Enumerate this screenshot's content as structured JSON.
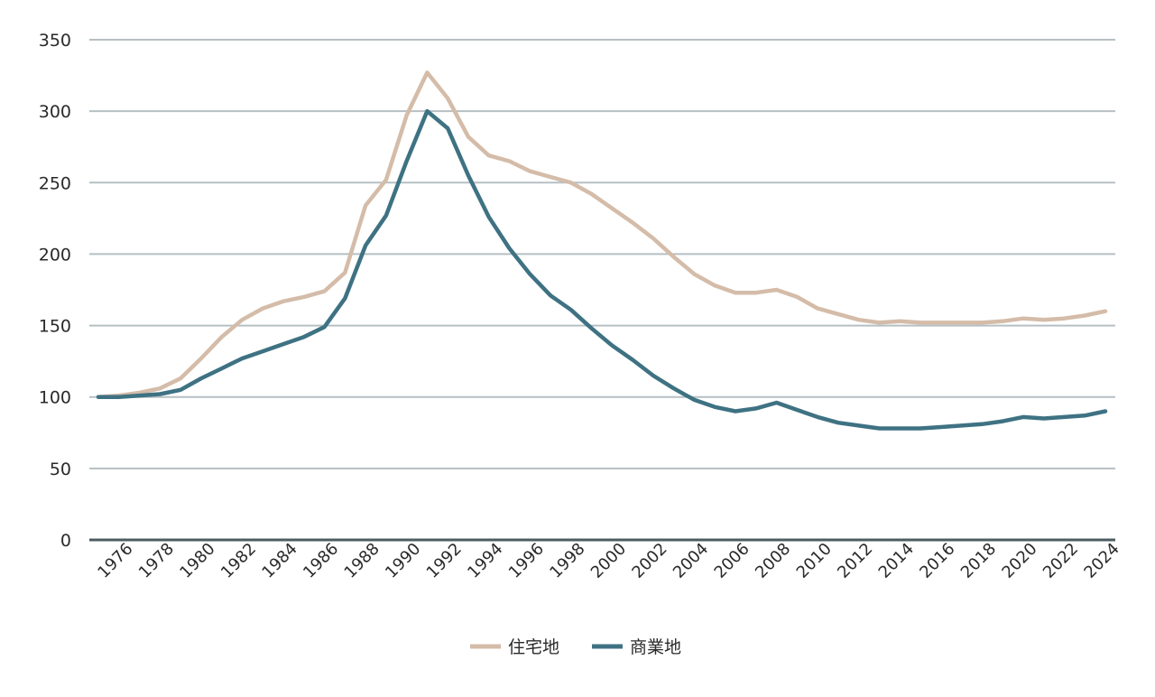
{
  "chart_data": {
    "type": "line",
    "title": "",
    "xlabel": "",
    "ylabel": "",
    "ylim": [
      0,
      350
    ],
    "yticks": [
      0,
      50,
      100,
      150,
      200,
      250,
      300,
      350
    ],
    "grid": true,
    "legend_position": "bottom-center",
    "x": [
      1975,
      1976,
      1977,
      1978,
      1979,
      1980,
      1981,
      1982,
      1983,
      1984,
      1985,
      1986,
      1987,
      1988,
      1989,
      1990,
      1991,
      1992,
      1993,
      1994,
      1995,
      1996,
      1997,
      1998,
      1999,
      2000,
      2001,
      2002,
      2003,
      2004,
      2005,
      2006,
      2007,
      2008,
      2009,
      2010,
      2011,
      2012,
      2013,
      2014,
      2015,
      2016,
      2017,
      2018,
      2019,
      2020,
      2021,
      2022,
      2023,
      2024
    ],
    "xtick_labels": [
      "1976",
      "1978",
      "1980",
      "1982",
      "1984",
      "1986",
      "1988",
      "1990",
      "1992",
      "1994",
      "1996",
      "1998",
      "2000",
      "2002",
      "2004",
      "2006",
      "2008",
      "2010",
      "2012",
      "2014",
      "2016",
      "2018",
      "2020",
      "2022",
      "2024"
    ],
    "series": [
      {
        "name": "住宅地",
        "color": "#d4bca9",
        "values": [
          100,
          101,
          103,
          106,
          113,
          127,
          142,
          154,
          162,
          167,
          170,
          174,
          187,
          234,
          252,
          297,
          327,
          309,
          282,
          269,
          265,
          258,
          254,
          250,
          242,
          232,
          222,
          211,
          198,
          186,
          178,
          173,
          173,
          175,
          170,
          162,
          158,
          154,
          152,
          153,
          152,
          152,
          152,
          152,
          153,
          155,
          154,
          155,
          157,
          160
        ]
      },
      {
        "name": "商業地",
        "color": "#3e7283",
        "values": [
          100,
          100,
          101,
          102,
          105,
          113,
          120,
          127,
          132,
          137,
          142,
          149,
          169,
          206,
          227,
          265,
          300,
          288,
          255,
          226,
          204,
          186,
          171,
          161,
          148,
          136,
          126,
          115,
          106,
          98,
          93,
          90,
          92,
          96,
          91,
          86,
          82,
          80,
          78,
          78,
          78,
          79,
          80,
          81,
          83,
          86,
          85,
          86,
          87,
          90
        ]
      }
    ]
  }
}
